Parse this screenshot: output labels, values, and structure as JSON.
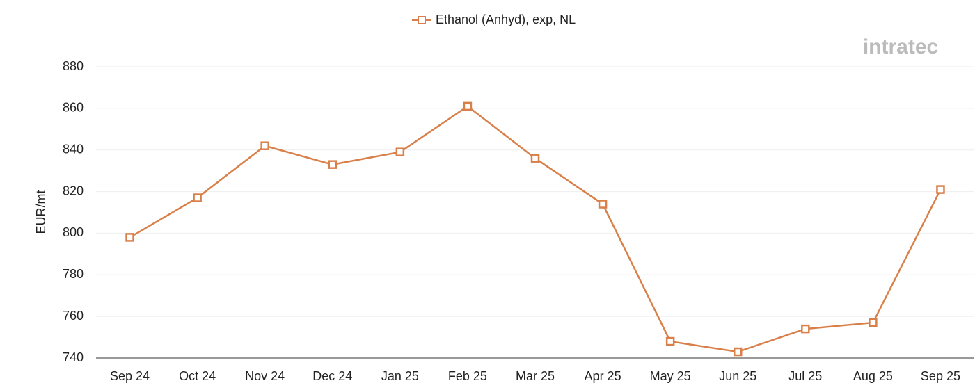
{
  "chart_data": {
    "type": "line",
    "watermark": "intratec",
    "y_label": "EUR/mt",
    "categories": [
      "Sep 24",
      "Oct 24",
      "Nov 24",
      "Dec 24",
      "Jan 25",
      "Feb 25",
      "Mar 25",
      "Apr 25",
      "May 25",
      "Jun 25",
      "Jul 25",
      "Aug 25",
      "Sep 25"
    ],
    "series": [
      {
        "name": "Ethanol (Anhyd), exp, NL",
        "color": "#d9804a",
        "values": [
          798,
          817,
          842,
          833,
          839,
          861,
          836,
          814,
          748,
          743,
          754,
          757,
          821
        ]
      }
    ],
    "ylim": [
      740,
      880
    ],
    "yticks": [
      740,
      760,
      780,
      800,
      820,
      840,
      860,
      880
    ],
    "grid": true,
    "legend": "top"
  }
}
